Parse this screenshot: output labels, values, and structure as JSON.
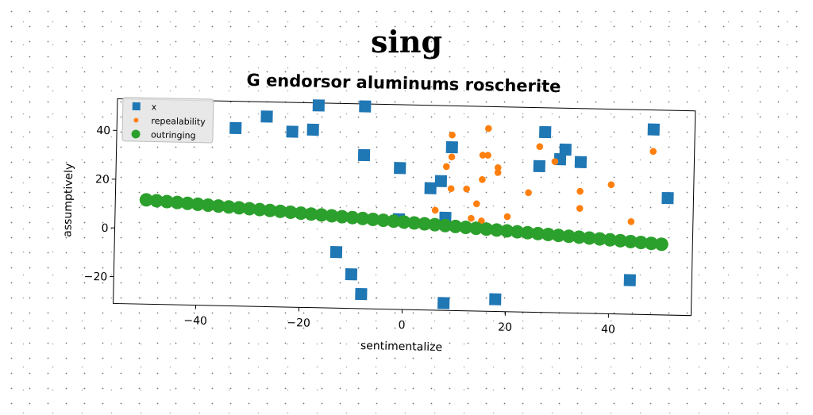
{
  "page": {
    "title": "sing"
  },
  "chart_data": {
    "type": "scatter",
    "title": "G endorsor aluminums roscherite",
    "xlabel": "sentimentalize",
    "ylabel": "assumptively",
    "xlim": [
      -56,
      56
    ],
    "ylim": [
      -31,
      53
    ],
    "xticks": [
      -40,
      -20,
      0,
      20,
      40
    ],
    "yticks": [
      -20,
      0,
      20,
      40
    ],
    "xtick_labels": [
      "−40",
      "−20",
      "0",
      "20",
      "40"
    ],
    "ytick_labels": [
      "−20",
      "0",
      "20",
      "40"
    ],
    "grid": false,
    "legend_position": "top-left",
    "series": [
      {
        "name": "x",
        "marker": "square",
        "color": "#1f77b4",
        "points": [
          [
            -33,
            42
          ],
          [
            -27,
            47
          ],
          [
            -22,
            41
          ],
          [
            -18,
            42
          ],
          [
            -17,
            52
          ],
          [
            -8,
            52
          ],
          [
            -8,
            32
          ],
          [
            -1,
            27
          ],
          [
            -1,
            6
          ],
          [
            5,
            19
          ],
          [
            7,
            22
          ],
          [
            8,
            7
          ],
          [
            9,
            36
          ],
          [
            8,
            -28
          ],
          [
            18,
            -26
          ],
          [
            26,
            29
          ],
          [
            27,
            43
          ],
          [
            30,
            32
          ],
          [
            31,
            36
          ],
          [
            34,
            31
          ],
          [
            44,
            -17
          ],
          [
            48,
            45
          ],
          [
            51,
            17
          ],
          [
            -13,
            -8
          ],
          [
            -10,
            -17
          ],
          [
            -8,
            -25
          ]
        ]
      },
      {
        "name": "repealability",
        "marker": "circle-small",
        "color": "#ff7f0e",
        "points": [
          [
            9,
            41
          ],
          [
            16,
            44
          ],
          [
            9,
            32
          ],
          [
            8,
            28
          ],
          [
            9,
            19
          ],
          [
            12,
            19
          ],
          [
            14,
            13
          ],
          [
            15,
            23
          ],
          [
            15,
            33
          ],
          [
            16,
            33
          ],
          [
            18,
            28
          ],
          [
            18,
            26
          ],
          [
            20,
            8
          ],
          [
            6,
            10
          ],
          [
            13,
            7
          ],
          [
            15,
            6
          ],
          [
            22,
            3
          ],
          [
            24,
            18
          ],
          [
            26,
            37
          ],
          [
            29,
            31
          ],
          [
            34,
            19
          ],
          [
            34,
            12
          ],
          [
            40,
            22
          ],
          [
            44,
            7
          ],
          [
            48,
            36
          ]
        ]
      },
      {
        "name": "outringing",
        "marker": "circle-large",
        "color": "#2ca02c",
        "line": {
          "x_start": -50,
          "x_end": 50,
          "count": 51,
          "y_start": 11.8,
          "y_end": -2.0
        }
      }
    ]
  }
}
